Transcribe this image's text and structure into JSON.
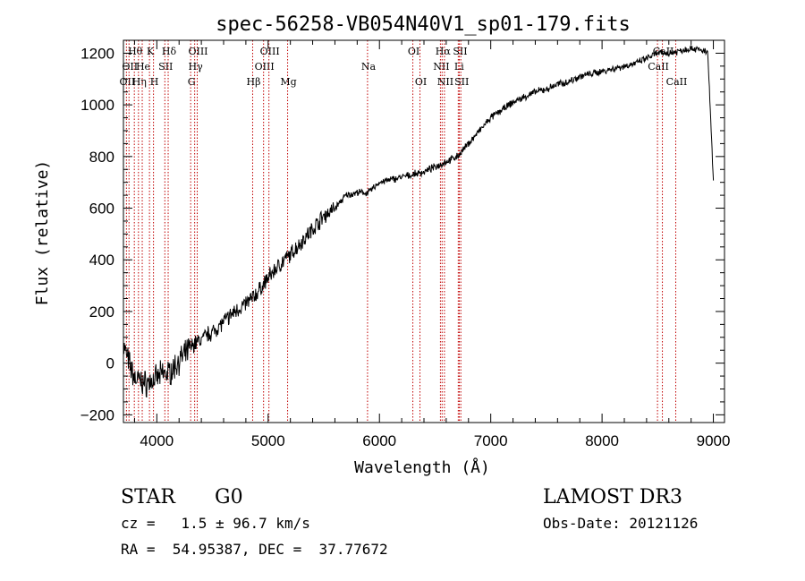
{
  "chart_data": {
    "type": "line",
    "title": "spec-56258-VB054N40V1_sp01-179.fits",
    "xlabel": "Wavelength (Å)",
    "ylabel": "Flux (relative)",
    "xlim": [
      3700,
      9100
    ],
    "ylim": [
      -230,
      1250
    ],
    "x_ticks": [
      {
        "value": 4000,
        "label": "4000"
      },
      {
        "value": 5000,
        "label": "5000"
      },
      {
        "value": 6000,
        "label": "6000"
      },
      {
        "value": 7000,
        "label": "7000"
      },
      {
        "value": 8000,
        "label": "8000"
      },
      {
        "value": 9000,
        "label": "9000"
      }
    ],
    "y_ticks": [
      {
        "value": -200,
        "label": "−200"
      },
      {
        "value": 0,
        "label": "0"
      },
      {
        "value": 200,
        "label": "200"
      },
      {
        "value": 400,
        "label": "400"
      },
      {
        "value": 600,
        "label": "600"
      },
      {
        "value": 800,
        "label": "800"
      },
      {
        "value": 1000,
        "label": "1000"
      },
      {
        "value": 1200,
        "label": "1200"
      }
    ],
    "series": [
      {
        "name": "flux",
        "x": [
          3700,
          3750,
          3800,
          3850,
          3900,
          3950,
          4000,
          4050,
          4100,
          4150,
          4200,
          4250,
          4300,
          4350,
          4400,
          4450,
          4500,
          4600,
          4700,
          4800,
          4900,
          5000,
          5100,
          5200,
          5300,
          5400,
          5500,
          5600,
          5700,
          5800,
          5900,
          6000,
          6100,
          6200,
          6300,
          6400,
          6500,
          6600,
          6700,
          6800,
          6900,
          7000,
          7100,
          7200,
          7300,
          7400,
          7500,
          7600,
          7700,
          7800,
          7900,
          8000,
          8100,
          8200,
          8300,
          8400,
          8500,
          8600,
          8700,
          8800,
          8900,
          8950,
          9000
        ],
        "y": [
          70,
          0,
          -60,
          -70,
          -80,
          -70,
          -60,
          -40,
          -40,
          -20,
          10,
          30,
          60,
          80,
          90,
          110,
          120,
          160,
          200,
          230,
          270,
          330,
          380,
          420,
          470,
          520,
          570,
          600,
          650,
          660,
          660,
          700,
          710,
          720,
          730,
          740,
          760,
          780,
          800,
          850,
          900,
          950,
          980,
          1010,
          1030,
          1050,
          1060,
          1080,
          1090,
          1110,
          1120,
          1130,
          1140,
          1150,
          1160,
          1180,
          1200,
          1200,
          1210,
          1220,
          1210,
          1200,
          700
        ]
      }
    ],
    "line_markers": [
      {
        "x": 3727,
        "label": "OII",
        "row": 2
      },
      {
        "x": 3750,
        "label": "OII",
        "row": 1
      },
      {
        "x": 3798,
        "label": "Hθ",
        "row": 0
      },
      {
        "x": 3835,
        "label": "Hη",
        "row": 2
      },
      {
        "x": 3869,
        "label": "He",
        "row": 1
      },
      {
        "x": 3934,
        "label": "K",
        "row": 0
      },
      {
        "x": 3970,
        "label": "H",
        "row": 2
      },
      {
        "x": 4072,
        "label": "SII",
        "row": 1
      },
      {
        "x": 4102,
        "label": "Hδ",
        "row": 0
      },
      {
        "x": 4304,
        "label": "G",
        "row": 2
      },
      {
        "x": 4340,
        "label": "Hγ",
        "row": 1
      },
      {
        "x": 4363,
        "label": "OIII",
        "row": 0
      },
      {
        "x": 4861,
        "label": "Hβ",
        "row": 2
      },
      {
        "x": 4959,
        "label": "OIII",
        "row": 1
      },
      {
        "x": 5007,
        "label": "OIII",
        "row": 0
      },
      {
        "x": 5175,
        "label": "Mg",
        "row": 2
      },
      {
        "x": 5893,
        "label": "Na",
        "row": 1
      },
      {
        "x": 6300,
        "label": "OI",
        "row": 0
      },
      {
        "x": 6364,
        "label": "OI",
        "row": 2
      },
      {
        "x": 6548,
        "label": "NII",
        "row": 1
      },
      {
        "x": 6563,
        "label": "Hα",
        "row": 0
      },
      {
        "x": 6584,
        "label": "NII",
        "row": 2
      },
      {
        "x": 6708,
        "label": "Li",
        "row": 1
      },
      {
        "x": 6717,
        "label": "SII",
        "row": 0
      },
      {
        "x": 6731,
        "label": "SII",
        "row": 2
      },
      {
        "x": 8498,
        "label": "CaII",
        "row": 1
      },
      {
        "x": 8542,
        "label": "CaII",
        "row": 0
      },
      {
        "x": 8662,
        "label": "CaII",
        "row": 2
      }
    ]
  },
  "info": {
    "class": "STAR",
    "subclass": "G0",
    "survey": "LAMOST DR3",
    "velocity": "cz =   1.5 ± 96.7 km/s",
    "obs_date": "Obs-Date: 20121126",
    "coords": "RA =  54.95387, DEC =  37.77672"
  }
}
